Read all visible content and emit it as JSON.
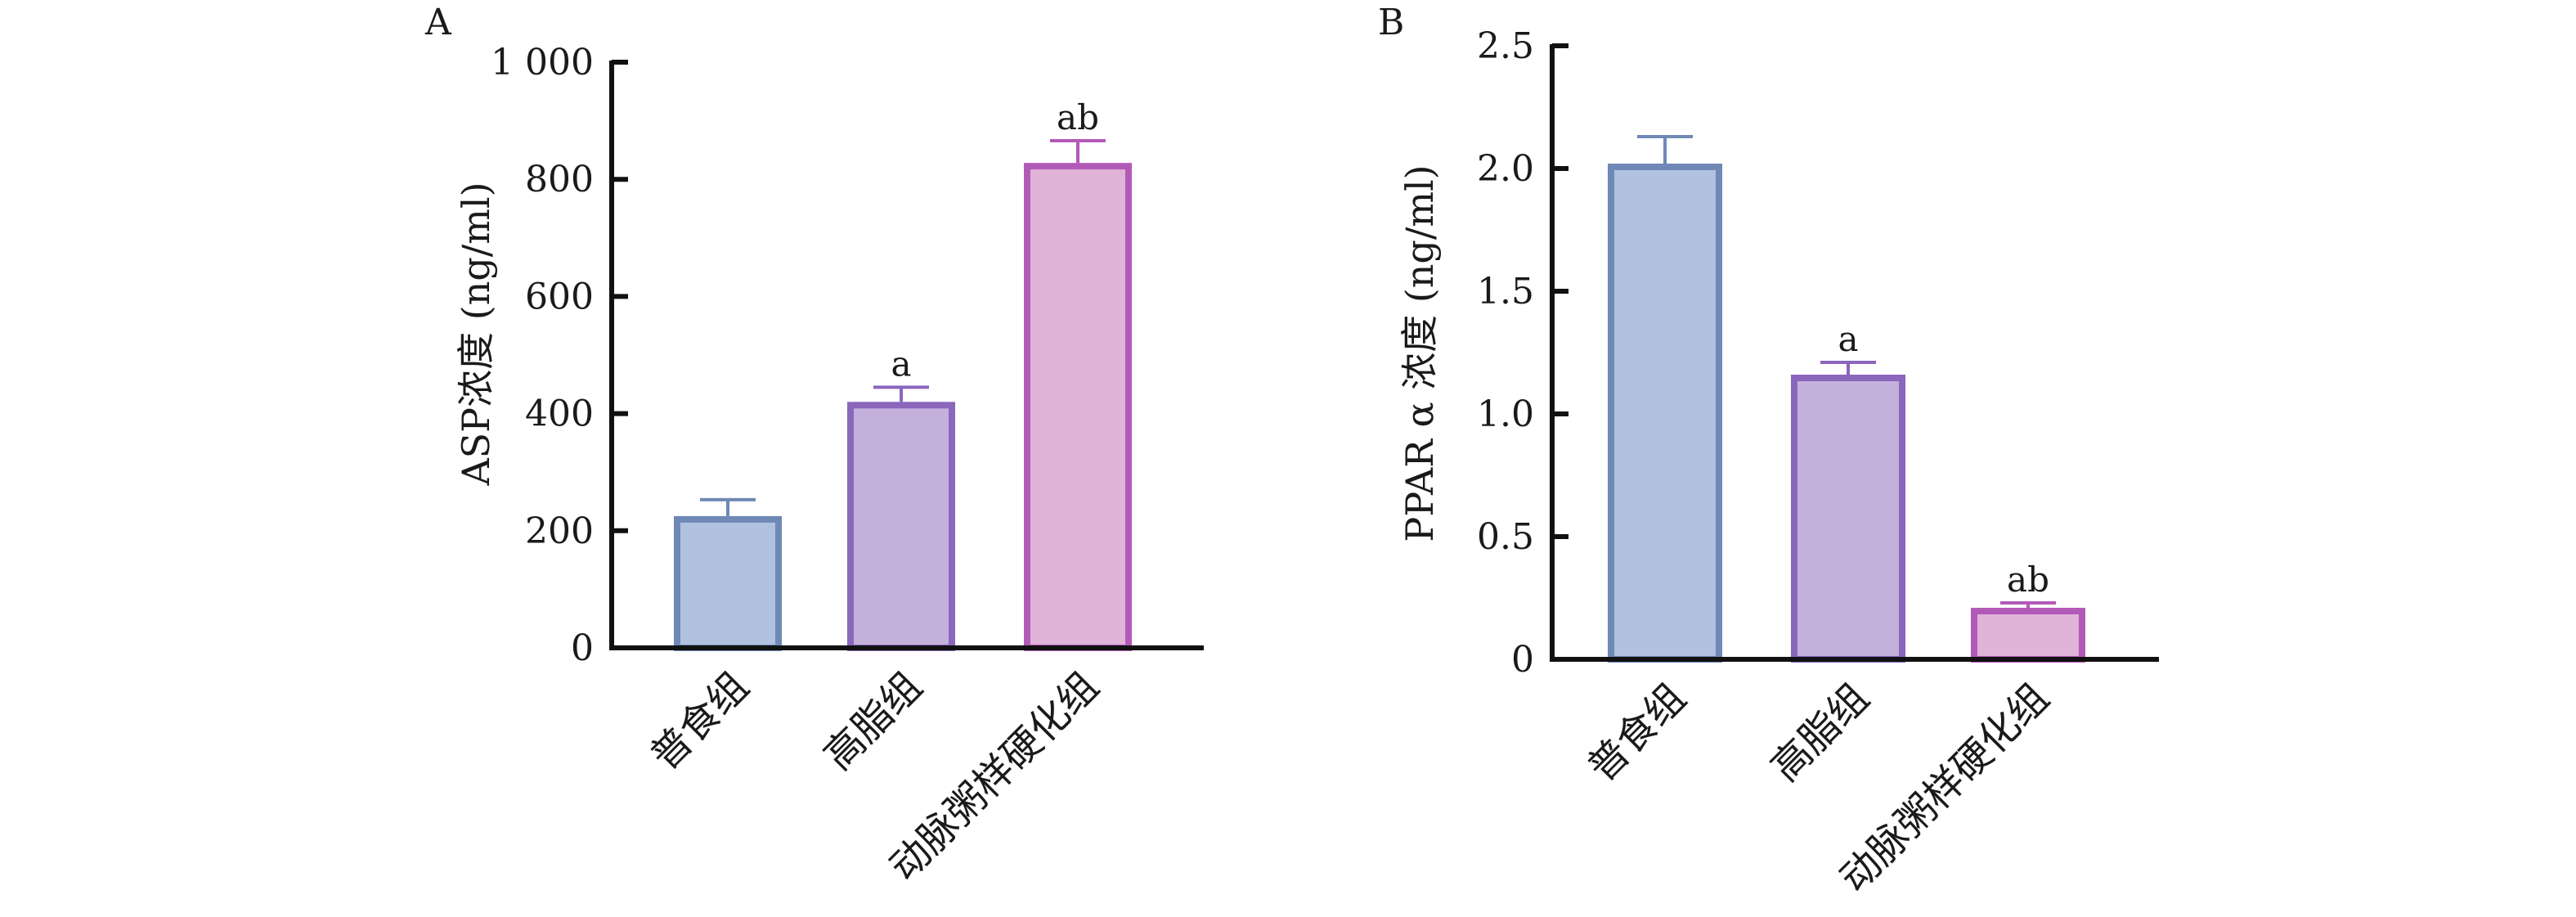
{
  "chart_data": [
    {
      "type": "bar",
      "panel": "A",
      "title": "",
      "xlabel": "",
      "ylabel": "ASP浓度 (ng/ml)",
      "categories": [
        "普食组",
        "高脂组",
        "动脉粥样硬化组"
      ],
      "values": [
        225,
        420,
        828
      ],
      "errors": [
        28,
        25,
        38
      ],
      "annotations": [
        "",
        "a",
        "ab"
      ],
      "ylim": [
        0,
        1000
      ],
      "yticks": [
        0,
        200,
        400,
        600,
        800,
        1000
      ],
      "ytick_labels": [
        "0",
        "200",
        "400",
        "600",
        "800",
        "1 000"
      ],
      "grid": false,
      "legend": "none"
    },
    {
      "type": "bar",
      "panel": "B",
      "title": "",
      "xlabel": "",
      "ylabel": "PPAR α 浓度 (ng/ml)",
      "categories": [
        "普食组",
        "高脂组",
        "动脉粥样硬化组"
      ],
      "values": [
        2.02,
        1.16,
        0.21
      ],
      "errors": [
        0.11,
        0.05,
        0.02
      ],
      "annotations": [
        "",
        "a",
        "ab"
      ],
      "ylim": [
        0,
        2.5
      ],
      "yticks": [
        0,
        0.5,
        1.0,
        1.5,
        2.0,
        2.5
      ],
      "ytick_labels": [
        "0",
        "0.5",
        "1.0",
        "1.5",
        "2.0",
        "2.5"
      ],
      "grid": false,
      "legend": "none"
    }
  ],
  "colors": {
    "bar_fills": [
      "#b0c2df",
      "#c3b1db",
      "#e0b3d9"
    ],
    "bar_edges": [
      "#6f88b5",
      "#8a66bd",
      "#b25ab7"
    ],
    "axis": "#111111"
  }
}
